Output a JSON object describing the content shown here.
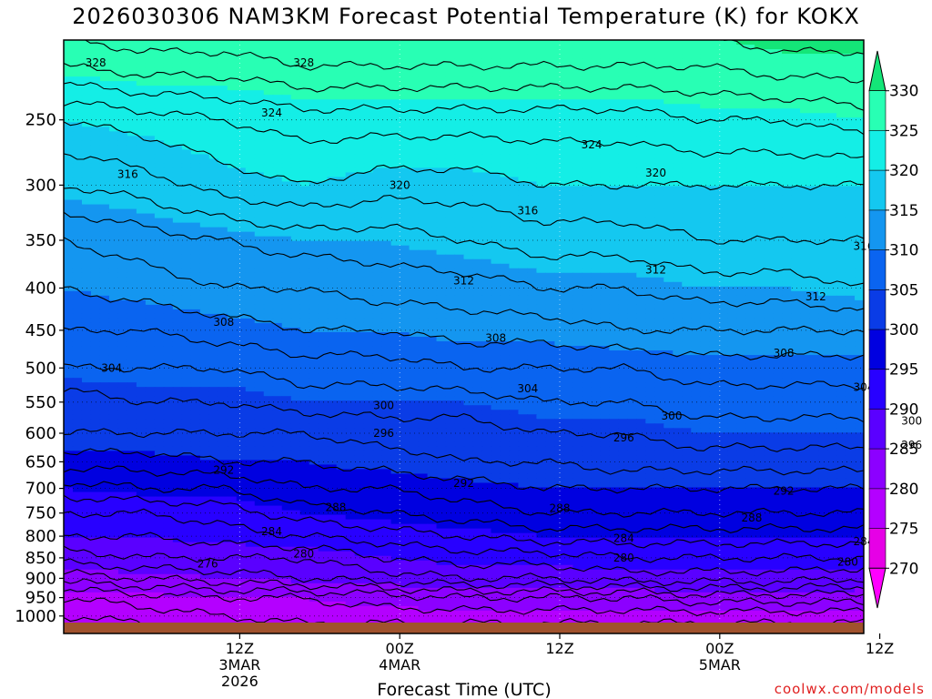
{
  "chart_data": {
    "type": "heatmap",
    "title": "2026030306 NAM3KM Forecast Potential Temperature (K) for KOKX",
    "xlabel": "Forecast Time (UTC)",
    "ylabel": "",
    "credit": "coolwx.com/models",
    "y_axis": {
      "scale": "log",
      "inverted": true,
      "ylim": [
        1050,
        200
      ],
      "ticks": [
        250,
        300,
        350,
        400,
        450,
        500,
        550,
        600,
        650,
        700,
        750,
        800,
        850,
        900,
        950,
        1000
      ],
      "tick_labels": [
        "250",
        "300",
        "350",
        "400",
        "450",
        "500",
        "550",
        "600",
        "650",
        "700",
        "750",
        "800",
        "850",
        "900",
        "950",
        "1000"
      ]
    },
    "x_axis": {
      "xlim_hours": [
        -5,
        45
      ],
      "ticks": [
        {
          "hour": 6,
          "lines": [
            "12Z",
            "3MAR",
            "2026"
          ]
        },
        {
          "hour": 16,
          "lines": [
            "00Z",
            "4MAR"
          ]
        },
        {
          "hour": 26,
          "lines": [
            "12Z"
          ]
        },
        {
          "hour": 36,
          "lines": [
            "00Z",
            "5MAR"
          ]
        },
        {
          "hour": 46,
          "lines": [
            "12Z"
          ]
        }
      ]
    },
    "grid": true,
    "legend": {
      "placement": "right",
      "levels": [
        270,
        275,
        280,
        285,
        290,
        295,
        300,
        305,
        310,
        315,
        320,
        325,
        330
      ],
      "labels": [
        "270",
        "275",
        "280",
        "285",
        "290",
        "295",
        "300",
        "305",
        "310",
        "315",
        "320",
        "325",
        "330"
      ],
      "colors": [
        "#ff00ff",
        "#e600e6",
        "#b400ff",
        "#8c00ff",
        "#5a00ff",
        "#2800ff",
        "#0000e0",
        "#0a3ce6",
        "#0a64f0",
        "#1496f0",
        "#14c8f0",
        "#14eee6",
        "#28ffb4",
        "#14e678"
      ]
    },
    "contour_interval": 2,
    "theta_at_pressure": [
      {
        "pressure": 1000,
        "theta": [
          276,
          277,
          278,
          279,
          279,
          279,
          279,
          279,
          279,
          279,
          279
        ]
      },
      {
        "pressure": 950,
        "theta": [
          278,
          279,
          280,
          280,
          281,
          282,
          282,
          282,
          283,
          283,
          283
        ]
      },
      {
        "pressure": 900,
        "theta": [
          283,
          284,
          285,
          286,
          287,
          288,
          288,
          289,
          289,
          289,
          288
        ]
      },
      {
        "pressure": 850,
        "theta": [
          287,
          288,
          288,
          288,
          290,
          291,
          291,
          292,
          292,
          292,
          292
        ]
      },
      {
        "pressure": 800,
        "theta": [
          290,
          290,
          291,
          292,
          293,
          294,
          295,
          295,
          295,
          295,
          295
        ]
      },
      {
        "pressure": 750,
        "theta": [
          292,
          292,
          293,
          295,
          296,
          297,
          298,
          298,
          298,
          298,
          298
        ]
      },
      {
        "pressure": 700,
        "theta": [
          295,
          296,
          296,
          298,
          298,
          299,
          300,
          300,
          300,
          300,
          300
        ]
      },
      {
        "pressure": 650,
        "theta": [
          299,
          299,
          300,
          300,
          301,
          302,
          302,
          303,
          303,
          303,
          303
        ]
      },
      {
        "pressure": 600,
        "theta": [
          302,
          302,
          302,
          302,
          303,
          303,
          304,
          304,
          305,
          305,
          305
        ]
      },
      {
        "pressure": 550,
        "theta": [
          303,
          304,
          304,
          305,
          305,
          305,
          306,
          306,
          307,
          307,
          307
        ]
      },
      {
        "pressure": 500,
        "theta": [
          306,
          306,
          306,
          307,
          307,
          308,
          308,
          308,
          309,
          309,
          309
        ]
      },
      {
        "pressure": 450,
        "theta": [
          308,
          308,
          309,
          310,
          310,
          311,
          311,
          312,
          312,
          312,
          312
        ]
      },
      {
        "pressure": 400,
        "theta": [
          310,
          311,
          312,
          312,
          313,
          313,
          314,
          314,
          315,
          315,
          316
        ]
      },
      {
        "pressure": 350,
        "theta": [
          312,
          313,
          314,
          315,
          315,
          316,
          317,
          317,
          318,
          318,
          318
        ]
      },
      {
        "pressure": 300,
        "theta": [
          316,
          317,
          319,
          320,
          319,
          319,
          320,
          320,
          320,
          320,
          320
        ]
      },
      {
        "pressure": 250,
        "theta": [
          320,
          321,
          322,
          323,
          323,
          323,
          323,
          323,
          324,
          324,
          325
        ]
      },
      {
        "pressure": 215,
        "theta": [
          326,
          327,
          327,
          328,
          328,
          328,
          328,
          328,
          328,
          329,
          329
        ]
      }
    ],
    "theta_hours": [
      -5,
      0,
      5,
      10,
      15,
      20,
      25,
      30,
      35,
      40,
      45
    ],
    "contour_labels": [
      "328",
      "328",
      "324",
      "324",
      "320",
      "320",
      "316",
      "316",
      "316",
      "312",
      "312",
      "312",
      "308",
      "308",
      "308",
      "304",
      "304",
      "304",
      "300",
      "300",
      "300",
      "296",
      "296",
      "296",
      "292",
      "292",
      "292",
      "288",
      "288",
      "288",
      "284",
      "284",
      "284",
      "280",
      "280",
      "280",
      "276"
    ]
  }
}
